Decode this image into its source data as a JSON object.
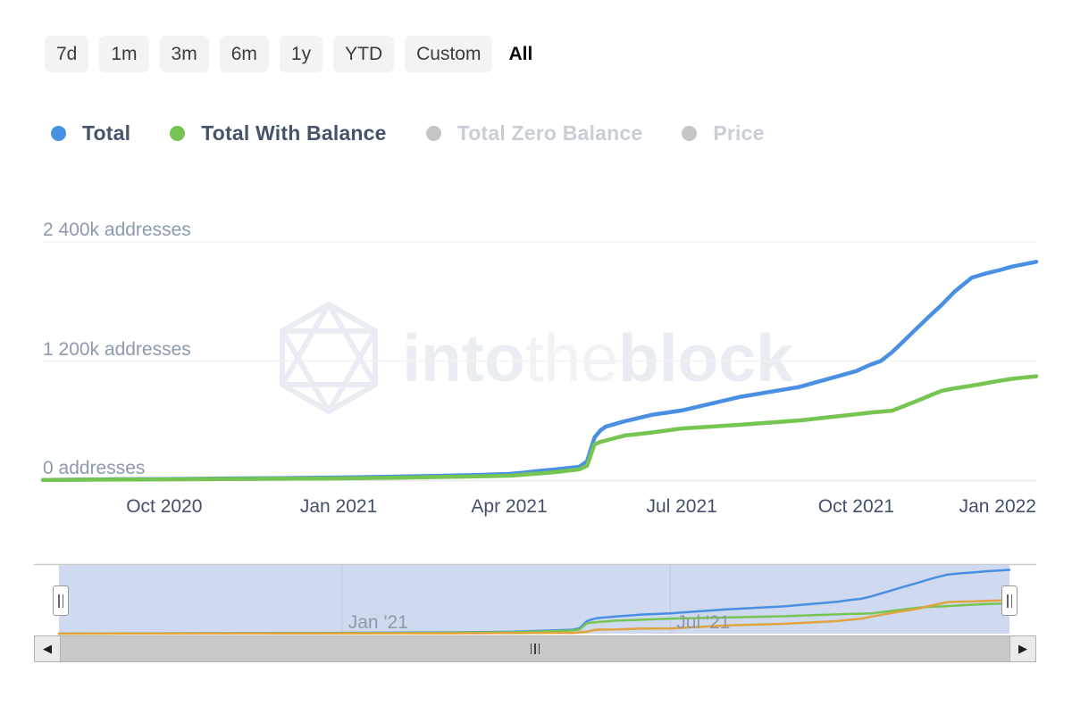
{
  "range_selector": {
    "buttons": [
      {
        "label": "7d",
        "selected": false
      },
      {
        "label": "1m",
        "selected": false
      },
      {
        "label": "3m",
        "selected": false
      },
      {
        "label": "6m",
        "selected": false
      },
      {
        "label": "1y",
        "selected": false
      },
      {
        "label": "YTD",
        "selected": false
      },
      {
        "label": "Custom",
        "selected": false
      },
      {
        "label": "All",
        "selected": true
      }
    ]
  },
  "legend": {
    "items": [
      {
        "label": "Total",
        "dot_color": "#4a90e2",
        "enabled": true
      },
      {
        "label": "Total With Balance",
        "dot_color": "#76c553",
        "enabled": true
      },
      {
        "label": "Total Zero Balance",
        "dot_color": "#c6c6c6",
        "enabled": false
      },
      {
        "label": "Price",
        "dot_color": "#c6c6c6",
        "enabled": false
      }
    ]
  },
  "watermark": {
    "part1": "into",
    "part2": "the",
    "part3": "block"
  },
  "icons": {
    "left_arrow": "◀",
    "right_arrow": "▶"
  },
  "colors": {
    "total_line": "#4a90e2",
    "with_balance_line": "#76c553",
    "zero_balance_line": "#e0a33e",
    "navigator_mask": "#cfd9f0",
    "navigator_gridline": "#bdc7e0",
    "gridline": "#f1f2f4",
    "axis_line": "#e8e8e8"
  },
  "chart_data": {
    "type": "line",
    "title": "",
    "xlabel": "",
    "ylabel": "addresses",
    "grid": "horizontal",
    "legend_position": "top",
    "x_domain": [
      "2020-07-29",
      "2022-01-04"
    ],
    "ylim": [
      0,
      2550000
    ],
    "x": [
      "2020-07-29",
      "2020-08-01",
      "2020-09-01",
      "2020-10-01",
      "2020-11-01",
      "2020-12-01",
      "2021-01-01",
      "2021-02-01",
      "2021-03-01",
      "2021-03-15",
      "2021-04-01",
      "2021-04-08",
      "2021-04-15",
      "2021-04-25",
      "2021-05-08",
      "2021-05-12",
      "2021-05-16",
      "2021-05-19",
      "2021-05-22",
      "2021-06-01",
      "2021-06-07",
      "2021-06-15",
      "2021-07-01",
      "2021-08-01",
      "2021-09-01",
      "2021-10-01",
      "2021-10-08",
      "2021-10-14",
      "2021-10-20",
      "2021-10-26",
      "2021-11-01",
      "2021-11-08",
      "2021-11-15",
      "2021-11-22",
      "2021-12-01",
      "2021-12-08",
      "2021-12-15",
      "2021-12-22",
      "2022-01-04"
    ],
    "series": [
      {
        "name": "Total",
        "color": "#4a90e2",
        "values": [
          1500,
          2000,
          8000,
          12000,
          16000,
          20000,
          27000,
          36000,
          46000,
          52000,
          63000,
          75000,
          90000,
          108000,
          135000,
          189000,
          430000,
          500000,
          540000,
          594000,
          620000,
          657000,
          702000,
          840000,
          938000,
          1098000,
          1160000,
          1200000,
          1290000,
          1400000,
          1512000,
          1640000,
          1764000,
          1900000,
          2040000,
          2080000,
          2112000,
          2150000,
          2200000
        ]
      },
      {
        "name": "Total With Balance",
        "color": "#76c553",
        "values": [
          1200,
          1500,
          5000,
          8000,
          11000,
          14000,
          18000,
          25000,
          33000,
          38000,
          45000,
          55000,
          65000,
          80000,
          110000,
          144000,
          360000,
          385000,
          400000,
          450000,
          462000,
          480000,
          520000,
          558000,
          601000,
          664000,
          680000,
          690000,
          700000,
          745000,
          790000,
          845000,
          900000,
          925000,
          952000,
          975000,
          1000000,
          1020000,
          1046000
        ]
      }
    ],
    "y_ticks": [
      {
        "label": "2 400k addresses",
        "value": 2400000
      },
      {
        "label": "1 200k addresses",
        "value": 1200000
      },
      {
        "label": "0 addresses",
        "value": 0
      }
    ],
    "x_ticks": [
      {
        "label": "Oct 2020",
        "date": "2020-10-01"
      },
      {
        "label": "Jan 2021",
        "date": "2021-01-01"
      },
      {
        "label": "Apr 2021",
        "date": "2021-04-01"
      },
      {
        "label": "Jul 2021",
        "date": "2021-07-01"
      },
      {
        "label": "Oct 2021",
        "date": "2021-10-01"
      },
      {
        "label": "Jan 2022",
        "date": "2022-01-01"
      }
    ],
    "navigator": {
      "ticks": [
        {
          "label": "Jan '21",
          "date": "2021-01-01"
        },
        {
          "label": "Jul '21",
          "date": "2021-07-01"
        }
      ],
      "extra_series": {
        "name": "Total Zero Balance",
        "color": "#e0a33e",
        "derived": "Total - Total With Balance"
      }
    }
  }
}
